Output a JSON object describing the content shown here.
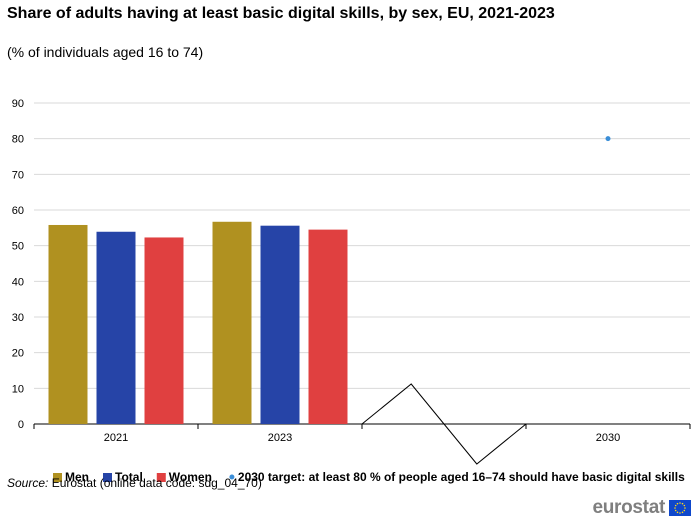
{
  "chart_data": {
    "type": "bar",
    "title": "Share of adults having at least basic digital skills, by sex, EU, 2021-2023",
    "subtitle": "(% of individuals aged 16 to 74)",
    "categories": [
      "2021",
      "2023",
      "",
      "2030"
    ],
    "series": [
      {
        "name": "Men",
        "color": "#b09120",
        "values": [
          55.8,
          56.7,
          null,
          null
        ]
      },
      {
        "name": "Total",
        "color": "#2644a7",
        "values": [
          53.9,
          55.6,
          null,
          null
        ]
      },
      {
        "name": "Women",
        "color": "#e04040",
        "values": [
          52.3,
          54.5,
          null,
          null
        ]
      }
    ],
    "target": {
      "name": "2030 target: at least 80 % of people aged 16–74 should have basic digital skills",
      "category": "2030",
      "value": 80,
      "color": "#3a8ed8"
    },
    "ylim": [
      0,
      90
    ],
    "yticks": [
      0,
      10,
      20,
      30,
      40,
      50,
      60,
      70,
      80,
      90
    ],
    "grid": true,
    "axis_break": true,
    "legend_position": "bottom"
  },
  "source": {
    "label": "Source:",
    "text": " Eurostat (online data code: sdg_04_70)"
  },
  "logo": {
    "text": "eurostat",
    "flag_color": "#0e47cb",
    "star_color": "#ffd617"
  }
}
